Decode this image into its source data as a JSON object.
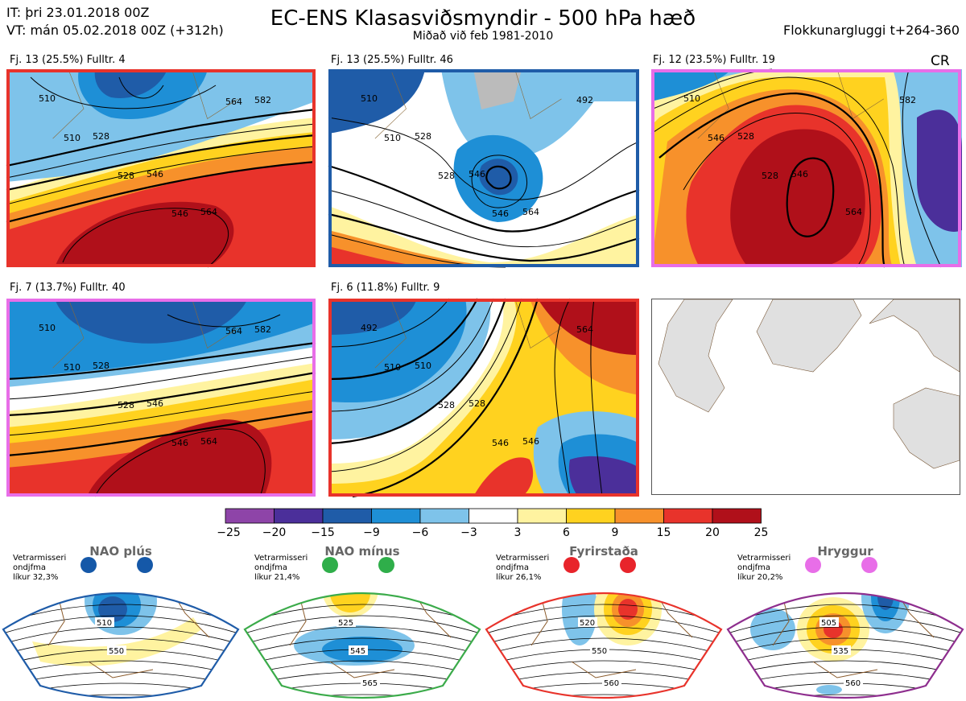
{
  "header": {
    "it": "IT: þri 23.01.2018 00Z",
    "vt": "VT: mán 05.02.2018 00Z  (+312h)",
    "title": "EC-ENS Klasasviðsmyndir - 500 hPa hæð",
    "subtitle": "Miðað við feb 1981-2010",
    "window": "Flokkunargluggi t+264-360",
    "cr": "CR"
  },
  "panels": [
    {
      "label": "Fj. 13 (25.5%)   Fulltr. 4",
      "border": "#e8332b",
      "contours": [
        "510",
        "528",
        "546",
        "564",
        "582",
        "510",
        "528",
        "546",
        "564"
      ]
    },
    {
      "label": "Fj. 13 (25.5%)   Fulltr. 46",
      "border": "#1f5ca8",
      "contours": [
        "510",
        "528",
        "546",
        "564",
        "492",
        "510",
        "528",
        "546"
      ]
    },
    {
      "label": "Fj. 12 (23.5%)   Fulltr. 19",
      "border": "#e86ee8",
      "contours": [
        "510",
        "528",
        "546",
        "564",
        "582",
        "546",
        "528"
      ]
    },
    {
      "label": "Fj. 7 (13.7%)   Fulltr. 40",
      "border": "#e86ee8",
      "contours": [
        "510",
        "528",
        "546",
        "564",
        "582",
        "510",
        "528",
        "546",
        "564"
      ]
    },
    {
      "label": "Fj. 6 (11.8%)   Fulltr. 9",
      "border": "#e8332b",
      "contours": [
        "492",
        "510",
        "528",
        "546",
        "564",
        "510",
        "528",
        "546"
      ]
    }
  ],
  "colorbar": {
    "ticks": [
      "−25",
      "−20",
      "−15",
      "−9",
      "−6",
      "−3",
      "3",
      "6",
      "9",
      "15",
      "20",
      "25"
    ],
    "colors": [
      "#8e44a8",
      "#4b2f9a",
      "#1f5ca8",
      "#1e8fd6",
      "#7ec3ea",
      "#ffffff",
      "#fff3a0",
      "#ffd21f",
      "#f7912b",
      "#e8332b",
      "#b0101a"
    ]
  },
  "regimes": [
    {
      "name": "NAO plús",
      "note": [
        "Vetrarmisseri",
        "ondjfma",
        "líkur 32,3%"
      ],
      "color": "#1f5ca8",
      "dot": "#1558a8",
      "labels": [
        "510",
        "550"
      ]
    },
    {
      "name": "NAO mínus",
      "note": [
        "Vetrarmisseri",
        "ondjfma",
        "líkur 21,4%"
      ],
      "color": "#3bab4a",
      "dot": "#2fae4a",
      "labels": [
        "525",
        "545",
        "565"
      ]
    },
    {
      "name": "Fyrirstaða",
      "note": [
        "Vetrarmisseri",
        "ondjfma",
        "líkur 26,1%"
      ],
      "color": "#e8332b",
      "dot": "#e8242b",
      "labels": [
        "520",
        "550",
        "560"
      ]
    },
    {
      "name": "Hryggur",
      "note": [
        "Vetrarmisseri",
        "ondjfma",
        "líkur 20,2%"
      ],
      "color": "#8e2e8e",
      "dot": "#e86ee8",
      "labels": [
        "505",
        "535",
        "560"
      ]
    }
  ]
}
